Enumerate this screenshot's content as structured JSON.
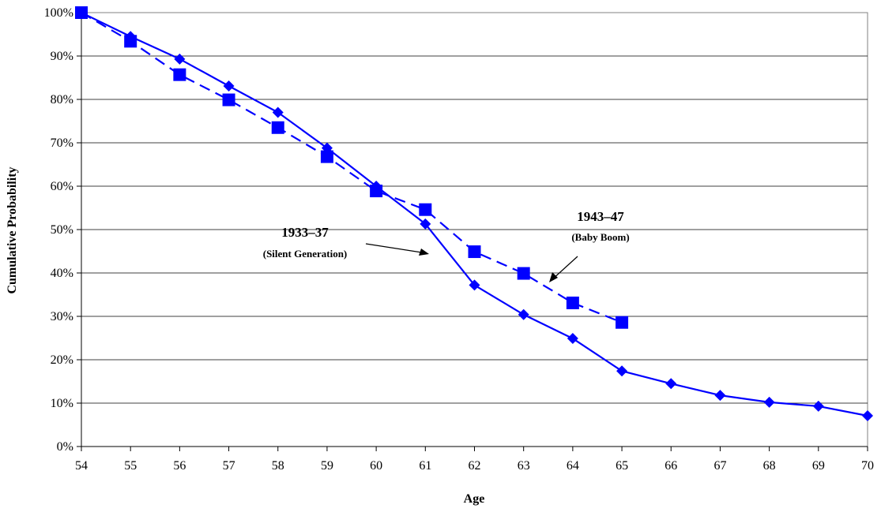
{
  "chart_data": {
    "type": "line",
    "title": "",
    "xlabel": "Age",
    "ylabel": "Cumulative Probability",
    "x": [
      54,
      55,
      56,
      57,
      58,
      59,
      60,
      61,
      62,
      63,
      64,
      65,
      66,
      67,
      68,
      69,
      70
    ],
    "xlim": [
      54,
      70
    ],
    "ylim": [
      0,
      100
    ],
    "y_ticks": [
      "0%",
      "10%",
      "20%",
      "30%",
      "40%",
      "50%",
      "60%",
      "70%",
      "80%",
      "90%",
      "100%"
    ],
    "grid": "horizontal",
    "legend": "none",
    "series": [
      {
        "name": "1933–37",
        "style": "solid",
        "marker": "diamond",
        "color": "#0000ff",
        "x": [
          54,
          55,
          56,
          57,
          58,
          59,
          60,
          61,
          62,
          63,
          64,
          65,
          66,
          67,
          68,
          69,
          70
        ],
        "values": [
          100,
          94.5,
          89.3,
          83.1,
          77,
          68.8,
          60,
          51.3,
          37.2,
          30.4,
          24.9,
          17.4,
          14.5,
          11.8,
          10.2,
          9.3,
          7.1
        ]
      },
      {
        "name": "1943–47",
        "style": "dashed",
        "marker": "square",
        "color": "#0000ff",
        "x": [
          54,
          55,
          56,
          57,
          58,
          59,
          60,
          61,
          62,
          63,
          64,
          65
        ],
        "values": [
          100,
          93.4,
          85.7,
          79.9,
          73.5,
          66.8,
          58.9,
          54.6,
          44.9,
          39.9,
          33.1,
          28.6
        ]
      }
    ],
    "annotations": [
      {
        "title": "1933–37",
        "subtitle": "(Silent Generation)"
      },
      {
        "title": "1943–47",
        "subtitle": "(Baby Boom)"
      }
    ]
  }
}
